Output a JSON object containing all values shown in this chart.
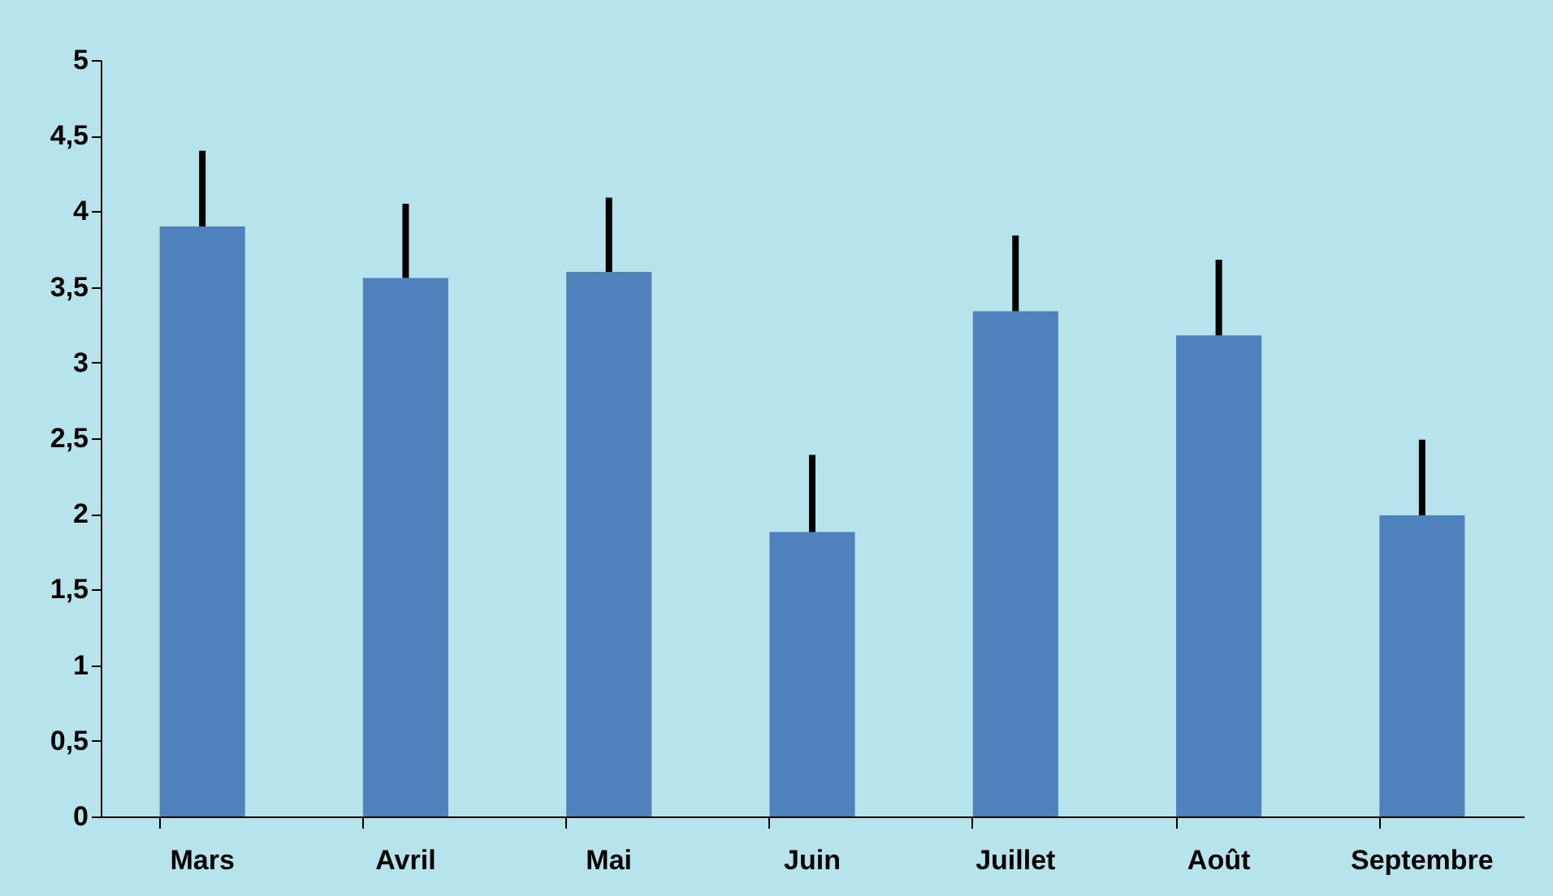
{
  "chart_data": {
    "type": "bar",
    "categories": [
      "Mars",
      "Avril",
      "Mai",
      "Juin",
      "Juillet",
      "Août",
      "Septembre"
    ],
    "values": [
      3.9,
      3.56,
      3.6,
      1.88,
      3.34,
      3.18,
      1.99
    ],
    "errors": [
      [
        3.9,
        4.4
      ],
      [
        3.56,
        4.05
      ],
      [
        3.6,
        4.09
      ],
      [
        1.88,
        2.39
      ],
      [
        3.34,
        3.84
      ],
      [
        3.18,
        3.68
      ],
      [
        1.99,
        2.49
      ]
    ],
    "color": "#4f81bd",
    "ylim": [
      0,
      5
    ],
    "yticks": [
      0,
      {
        "value": 0.5,
        "label": "0,5"
      },
      1,
      {
        "value": 1.5,
        "label": "1,5"
      },
      2,
      {
        "value": 2.5,
        "label": "2,5"
      },
      3,
      {
        "value": 3.5,
        "label": "3,5"
      },
      4,
      {
        "value": 4.5,
        "label": "4,5"
      },
      5
    ],
    "grid": false
  }
}
